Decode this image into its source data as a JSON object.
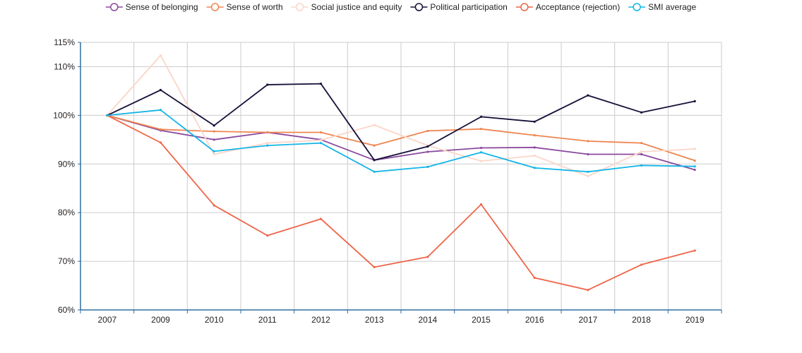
{
  "chart_data": {
    "type": "line",
    "title": "",
    "xlabel": "",
    "ylabel": "",
    "categories": [
      "2007",
      "2009",
      "2010",
      "2011",
      "2012",
      "2013",
      "2014",
      "2015",
      "2016",
      "2017",
      "2018",
      "2019"
    ],
    "ylim": [
      60,
      115
    ],
    "yticks": [
      60,
      70,
      80,
      90,
      100,
      110,
      115
    ],
    "ytick_labels": [
      "60%",
      "70%",
      "80%",
      "90%",
      "100%",
      "110%",
      "115%"
    ],
    "grid": true,
    "legend_position": "top",
    "series": [
      {
        "name": "Sense of belonging",
        "color": "#8b4a9e",
        "values": [
          100,
          96.9,
          95,
          96.5,
          95,
          90.8,
          92.5,
          93.3,
          93.4,
          92,
          92,
          88.8
        ]
      },
      {
        "name": "Sense of worth",
        "color": "#ee8550",
        "values": [
          100,
          97.1,
          96.7,
          96.5,
          96.5,
          93.8,
          96.8,
          97.2,
          95.9,
          94.7,
          94.3,
          90.7
        ]
      },
      {
        "name": "Social justice and equity",
        "color": "#fbd6c8",
        "values": [
          100,
          112.3,
          92,
          94.3,
          94.9,
          98,
          93.8,
          90.6,
          91.7,
          87.5,
          92.5,
          93.1
        ]
      },
      {
        "name": "Political participation",
        "color": "#151038",
        "values": [
          100,
          105.2,
          97.9,
          106.3,
          106.5,
          90.8,
          93.6,
          99.7,
          98.7,
          104.1,
          100.6,
          102.9
        ]
      },
      {
        "name": "Acceptance (rejection)",
        "color": "#ef6548",
        "values": [
          100,
          94.4,
          81.5,
          75.3,
          78.7,
          68.8,
          70.9,
          81.7,
          66.6,
          64.1,
          69.3,
          72.2
        ]
      },
      {
        "name": "SMI average",
        "color": "#13b5e8",
        "values": [
          100,
          101.1,
          92.6,
          93.8,
          94.3,
          88.4,
          89.4,
          92.4,
          89.2,
          88.4,
          89.7,
          89.5
        ]
      }
    ]
  }
}
